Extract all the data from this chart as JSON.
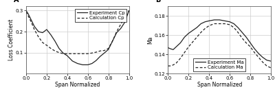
{
  "panel_A": {
    "title": "A",
    "xlabel": "Span Normalized",
    "ylabel": "Loss Coefficient",
    "xlim": [
      0,
      1
    ],
    "ylim": [
      0.0,
      0.32
    ],
    "yticks": [
      0.1,
      0.2,
      0.3
    ],
    "xticks": [
      0.0,
      0.2,
      0.4,
      0.6,
      0.8,
      1.0
    ],
    "exp_x": [
      0.0,
      0.02,
      0.05,
      0.08,
      0.12,
      0.16,
      0.2,
      0.24,
      0.28,
      0.32,
      0.36,
      0.4,
      0.45,
      0.5,
      0.55,
      0.6,
      0.64,
      0.68,
      0.72,
      0.76,
      0.8,
      0.84,
      0.88,
      0.92,
      0.96,
      1.0
    ],
    "exp_y": [
      0.3,
      0.285,
      0.255,
      0.225,
      0.2,
      0.195,
      0.21,
      0.185,
      0.155,
      0.12,
      0.098,
      0.085,
      0.06,
      0.048,
      0.042,
      0.042,
      0.048,
      0.062,
      0.082,
      0.098,
      0.115,
      0.155,
      0.195,
      0.215,
      0.245,
      0.3
    ],
    "calc_x": [
      0.0,
      0.02,
      0.05,
      0.08,
      0.12,
      0.16,
      0.2,
      0.24,
      0.28,
      0.32,
      0.36,
      0.4,
      0.45,
      0.5,
      0.55,
      0.6,
      0.64,
      0.68,
      0.72,
      0.76,
      0.8,
      0.84,
      0.88,
      0.92,
      0.96,
      1.0
    ],
    "calc_y": [
      0.295,
      0.275,
      0.245,
      0.21,
      0.175,
      0.148,
      0.135,
      0.12,
      0.108,
      0.1,
      0.095,
      0.095,
      0.095,
      0.095,
      0.095,
      0.095,
      0.098,
      0.102,
      0.108,
      0.11,
      0.12,
      0.155,
      0.2,
      0.235,
      0.265,
      0.3
    ],
    "legend_exp": "Experiment Cp",
    "legend_calc": "Calculation Cp"
  },
  "panel_B": {
    "title": "B",
    "xlabel": "Span Normalized",
    "ylabel": "Ma",
    "xlim": [
      0,
      1
    ],
    "ylim": [
      0.12,
      0.19
    ],
    "yticks": [
      0.12,
      0.14,
      0.16,
      0.18
    ],
    "xticks": [
      0.0,
      0.2,
      0.4,
      0.6,
      0.8,
      1.0
    ],
    "exp_x": [
      0.0,
      0.02,
      0.05,
      0.08,
      0.12,
      0.16,
      0.2,
      0.24,
      0.28,
      0.32,
      0.36,
      0.4,
      0.45,
      0.5,
      0.55,
      0.6,
      0.64,
      0.68,
      0.72,
      0.76,
      0.8,
      0.84,
      0.88,
      0.92,
      0.96,
      1.0
    ],
    "exp_y": [
      0.147,
      0.146,
      0.145,
      0.148,
      0.152,
      0.158,
      0.162,
      0.165,
      0.168,
      0.172,
      0.174,
      0.175,
      0.176,
      0.176,
      0.175,
      0.174,
      0.172,
      0.168,
      0.163,
      0.158,
      0.152,
      0.146,
      0.141,
      0.137,
      0.134,
      0.133
    ],
    "calc_x": [
      0.0,
      0.02,
      0.05,
      0.08,
      0.12,
      0.16,
      0.2,
      0.24,
      0.28,
      0.32,
      0.36,
      0.4,
      0.45,
      0.5,
      0.55,
      0.6,
      0.64,
      0.68,
      0.72,
      0.76,
      0.8,
      0.84,
      0.88,
      0.92,
      0.96,
      1.0
    ],
    "calc_y": [
      0.128,
      0.128,
      0.129,
      0.131,
      0.136,
      0.142,
      0.148,
      0.153,
      0.158,
      0.163,
      0.167,
      0.17,
      0.172,
      0.172,
      0.172,
      0.171,
      0.168,
      0.163,
      0.157,
      0.152,
      0.148,
      0.142,
      0.137,
      0.132,
      0.128,
      0.126
    ],
    "legend_exp": "Experiment Ma",
    "legend_calc": "Calculation Ma"
  },
  "line_color": "#222222",
  "bg_color": "#ffffff",
  "grid_color": "#cccccc",
  "fontsize_label": 5.5,
  "fontsize_tick": 5.0,
  "fontsize_legend": 5.0,
  "fontsize_title": 7
}
